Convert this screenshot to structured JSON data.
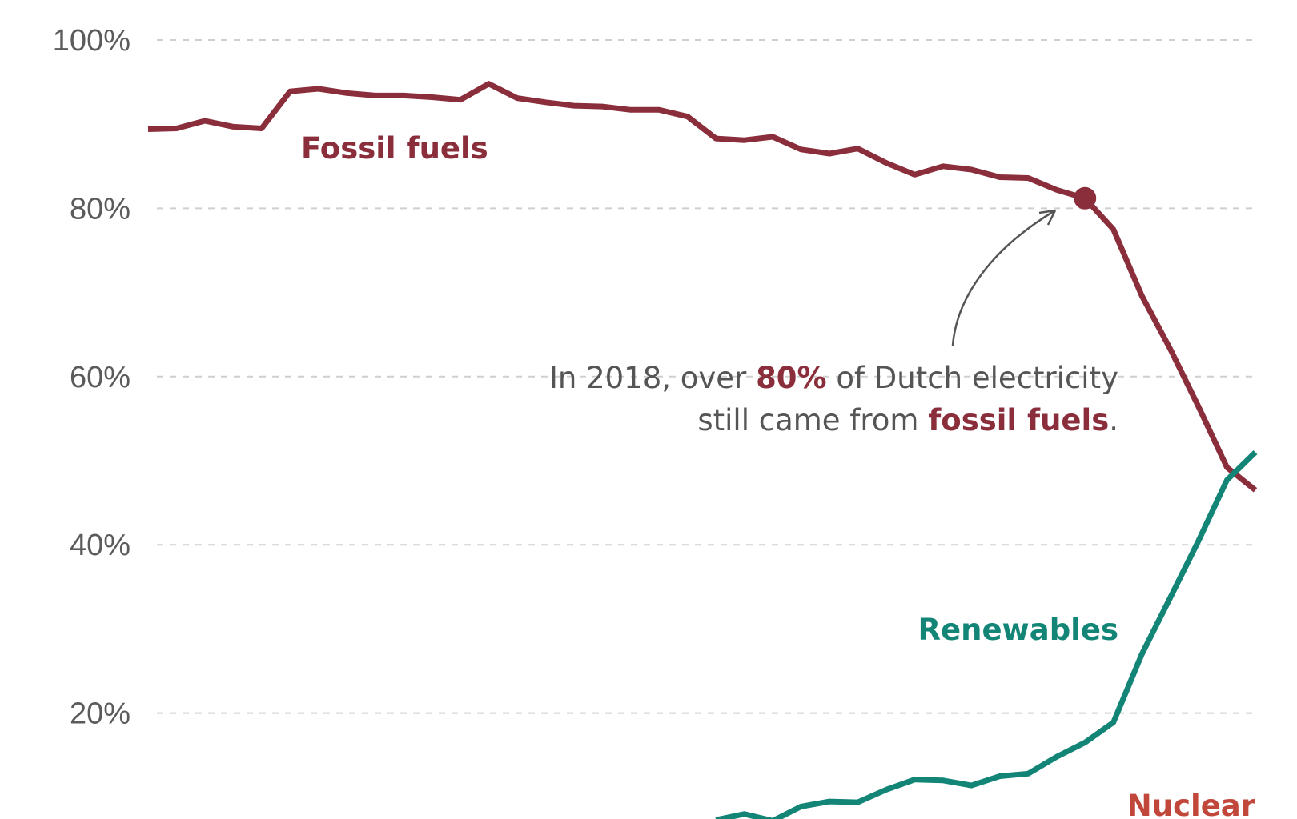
{
  "chart_data": {
    "type": "line",
    "title": "",
    "xlabel": "",
    "ylabel": "",
    "ylim": [
      0,
      100
    ],
    "xlim": [
      1985,
      2024
    ],
    "y_ticks": [
      "100%",
      "80%",
      "60%",
      "40%",
      "20%"
    ],
    "y_tick_values": [
      100,
      80,
      60,
      40,
      20
    ],
    "grid": true,
    "colors": {
      "fossil": "#8b2e3c",
      "renewables": "#138577",
      "nuclear": "#c0473a",
      "grid": "#cfcfcf",
      "annotation_text": "#555555"
    },
    "series": [
      {
        "name": "Fossil fuels",
        "x": [
          1985,
          1986,
          1987,
          1988,
          1989,
          1990,
          1991,
          1992,
          1993,
          1994,
          1995,
          1996,
          1997,
          1998,
          1999,
          2000,
          2001,
          2002,
          2003,
          2004,
          2005,
          2006,
          2007,
          2008,
          2009,
          2010,
          2011,
          2012,
          2013,
          2014,
          2015,
          2016,
          2017,
          2018,
          2019,
          2020,
          2021,
          2022,
          2023,
          2024
        ],
        "values": [
          89.4,
          89.5,
          90.4,
          89.7,
          89.5,
          93.9,
          94.2,
          93.7,
          93.4,
          93.4,
          93.2,
          92.9,
          94.8,
          93.1,
          92.6,
          92.2,
          92.1,
          91.7,
          91.7,
          90.9,
          88.3,
          88.1,
          88.5,
          87.0,
          86.5,
          87.1,
          85.4,
          84.0,
          85.0,
          84.6,
          83.7,
          83.6,
          82.2,
          81.2,
          77.5,
          69.6,
          63.3,
          56.4,
          49.2,
          46.5
        ]
      },
      {
        "name": "Renewables",
        "x": [
          2005,
          2006,
          2007,
          2008,
          2009,
          2010,
          2011,
          2012,
          2013,
          2014,
          2015,
          2016,
          2017,
          2018,
          2019,
          2020,
          2021,
          2022,
          2023,
          2024
        ],
        "values": [
          7.3,
          8.0,
          7.2,
          8.9,
          9.5,
          9.4,
          10.9,
          12.1,
          12.0,
          11.4,
          12.5,
          12.8,
          14.8,
          16.5,
          18.9,
          27.0,
          33.7,
          40.5,
          47.7,
          51.0
        ]
      },
      {
        "name": "Nuclear",
        "x": [],
        "values": []
      }
    ],
    "labels": {
      "fossil": "Fossil fuels",
      "renewables": "Renewables",
      "nuclear": "Nuclear"
    },
    "annotation": {
      "year": 2018,
      "value": 81.2,
      "line1": {
        "a": "In 2018, over ",
        "b": "80%",
        "c": " of Dutch electricity"
      },
      "line2": {
        "a": "still came from ",
        "b": "fossil fuels",
        "c": "."
      }
    }
  }
}
